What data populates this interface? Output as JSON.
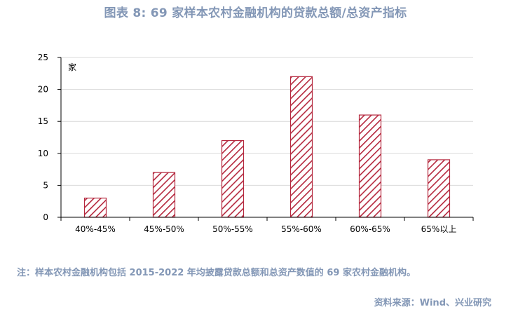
{
  "title": "图表 8:  69 家样本农村金融机构的贷款总额/总资产指标",
  "note": "注：样本农村金融机构包括 2015-2022 年均披露贷款总额和总资产数值的 69 家农村金融机构。",
  "source": "资料来源：Wind、兴业研究",
  "colors": {
    "bar_stroke": "#b5283e",
    "text_accent": "#8397b6",
    "grid": "#d9d9d9"
  },
  "chart_data": {
    "type": "bar",
    "categories": [
      "40%-45%",
      "45%-50%",
      "50%-55%",
      "55%-60%",
      "60%-65%",
      "65%以上"
    ],
    "values": [
      3,
      7,
      12,
      22,
      16,
      9
    ],
    "ylabel": "家",
    "ylim": [
      0,
      25
    ],
    "yticks": [
      "0",
      "5",
      "10",
      "15",
      "20",
      "25"
    ],
    "grid": true,
    "pattern": "diagonal-hatch"
  }
}
